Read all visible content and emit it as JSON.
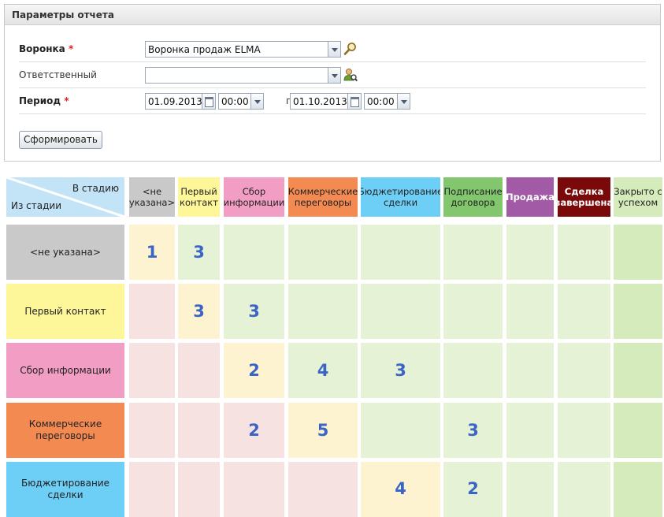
{
  "panel": {
    "title": "Параметры отчета",
    "funnel_label": "Воронка",
    "required_mark": "*",
    "funnel_value": "Воронка продаж ELMA",
    "responsible_label": "Ответственный",
    "responsible_value": "",
    "period_label": "Период",
    "date_from": "01.09.2013",
    "time_from": "00:00",
    "to_word": "по",
    "date_to": "01.10.2013",
    "time_to": "00:00",
    "generate_label": "Сформировать"
  },
  "matrix": {
    "corner_to": "В стадию",
    "corner_from": "Из стадии",
    "columns": [
      {
        "label": "<не\nуказана>",
        "color": "#c9c9c9"
      },
      {
        "label": "Первый\nконтакт",
        "color": "#fef799"
      },
      {
        "label": "Сбор\nинформации",
        "color": "#f29ec4"
      },
      {
        "label": "Коммерческие\nпереговоры",
        "color": "#f38a52"
      },
      {
        "label": "Бюджетирование\nсделки",
        "color": "#6ecff6"
      },
      {
        "label": "Подписание\nдоговора",
        "color": "#82c76e"
      },
      {
        "label": "Продажа",
        "color": "#a25aa7"
      },
      {
        "label": "Сделка\nзавершена",
        "color": "#7a0a0a"
      },
      {
        "label": "Закрыто с\nуспехом",
        "color": "#d6ebbb"
      }
    ],
    "rows": [
      {
        "label": "<не указана>",
        "color": "#c9c9c9"
      },
      {
        "label": "Первый контакт",
        "color": "#fef799"
      },
      {
        "label": "Сбор информации",
        "color": "#f29ec4"
      },
      {
        "label": "Коммерческие\nпереговоры",
        "color": "#f38a52"
      },
      {
        "label": "Бюджетирование сделки",
        "color": "#6ecff6"
      }
    ],
    "values": [
      [
        "1",
        "3",
        "",
        "",
        "",
        "",
        "",
        "",
        ""
      ],
      [
        "",
        "3",
        "3",
        "",
        "",
        "",
        "",
        "",
        ""
      ],
      [
        "",
        "",
        "2",
        "4",
        "3",
        "",
        "",
        "",
        ""
      ],
      [
        "",
        "",
        "2",
        "5",
        "",
        "3",
        "",
        "",
        ""
      ],
      [
        "",
        "",
        "",
        "",
        "4",
        "2",
        "",
        "",
        ""
      ]
    ],
    "cell_colors": {
      "diagonal": "#fdf3d0",
      "forward": "#e5f2d5",
      "backward": "#f6e2e0",
      "last_column": "#d6ebbb"
    }
  }
}
